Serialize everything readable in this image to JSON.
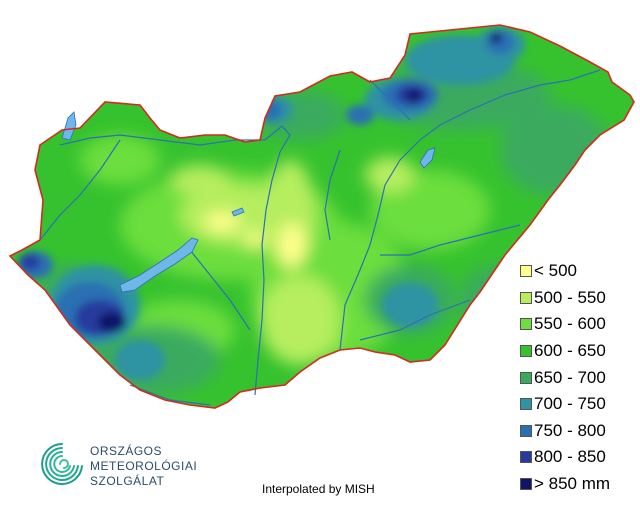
{
  "legend": {
    "items": [
      {
        "label": "< 500",
        "color": "#ffff8c"
      },
      {
        "label": "500 - 550",
        "color": "#b6ee5e"
      },
      {
        "label": "550 - 600",
        "color": "#6cde3e"
      },
      {
        "label": "600 - 650",
        "color": "#36c22e"
      },
      {
        "label": "650 - 700",
        "color": "#3aaa5e"
      },
      {
        "label": "700 - 750",
        "color": "#2f93a3"
      },
      {
        "label": "750 - 800",
        "color": "#2a6fb2"
      },
      {
        "label": "800 - 850",
        "color": "#283a9e"
      },
      {
        "label": "> 850 mm",
        "color": "#101468"
      }
    ]
  },
  "logo": {
    "lines": [
      "ORSZÁGOS",
      "METEOROLÓGIAI",
      "SZOLGÁLAT"
    ],
    "color": "#2a4d6b"
  },
  "credit": "Interpolated by MISH",
  "colors": {
    "border": "#d42a1e",
    "rivers": "#2e6fb5",
    "lakes": "#6fb7e8"
  }
}
